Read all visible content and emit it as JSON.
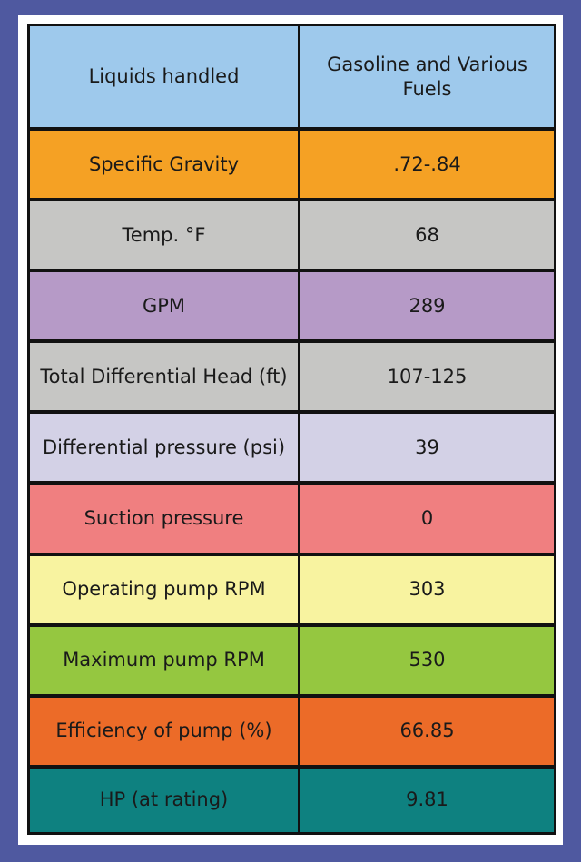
{
  "rows": [
    {
      "label": "Liquids handled",
      "value": "Gasoline and Various Fuels",
      "color": "#9ec9ec"
    },
    {
      "label": "Specific Gravity",
      "value": ".72-.84",
      "color": "#f5a124"
    },
    {
      "label": "Temp. °F",
      "value": "68",
      "color": "#c6c6c4"
    },
    {
      "label": "GPM",
      "value": "289",
      "color": "#b69ac7"
    },
    {
      "label": "Total Differential Head (ft)",
      "value": "107-125",
      "color": "#c6c6c4"
    },
    {
      "label": "Differential pressure (psi)",
      "value": "39",
      "color": "#d3d1e6"
    },
    {
      "label": "Suction pressure",
      "value": "0",
      "color": "#f07f80"
    },
    {
      "label": "Operating pump RPM",
      "value": "303",
      "color": "#f8f3a0"
    },
    {
      "label": "Maximum pump RPM",
      "value": "530",
      "color": "#95c740"
    },
    {
      "label": "Efficiency of pump (%)",
      "value": "66.85",
      "color": "#ec6b28"
    },
    {
      "label": "HP (at rating)",
      "value": "9.81",
      "color": "#0e8180"
    }
  ]
}
